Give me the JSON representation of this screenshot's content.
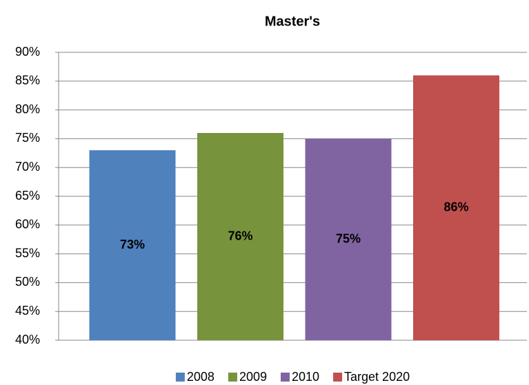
{
  "chart_data": {
    "type": "bar",
    "title": "Master's",
    "series": [
      {
        "name": "2008",
        "color": "#4f81bd",
        "values": [
          73
        ],
        "value_labels": [
          "73%"
        ]
      },
      {
        "name": "2009",
        "color": "#77933c",
        "values": [
          76
        ],
        "value_labels": [
          "76%"
        ]
      },
      {
        "name": "2010",
        "color": "#8064a2",
        "values": [
          75
        ],
        "value_labels": [
          "75%"
        ]
      },
      {
        "name": "Target 2020",
        "color": "#c0504d",
        "values": [
          86
        ],
        "value_labels": [
          "86%"
        ]
      }
    ],
    "ylim": [
      40,
      90
    ],
    "yticks": [
      {
        "value": 40,
        "label": "40%"
      },
      {
        "value": 45,
        "label": "45%"
      },
      {
        "value": 50,
        "label": "50%"
      },
      {
        "value": 55,
        "label": "55%"
      },
      {
        "value": 60,
        "label": "60%"
      },
      {
        "value": 65,
        "label": "65%"
      },
      {
        "value": 70,
        "label": "70%"
      },
      {
        "value": 75,
        "label": "75%"
      },
      {
        "value": 80,
        "label": "80%"
      },
      {
        "value": 85,
        "label": "85%"
      },
      {
        "value": 90,
        "label": "90%"
      }
    ],
    "grid": true,
    "legend": "bottom"
  }
}
